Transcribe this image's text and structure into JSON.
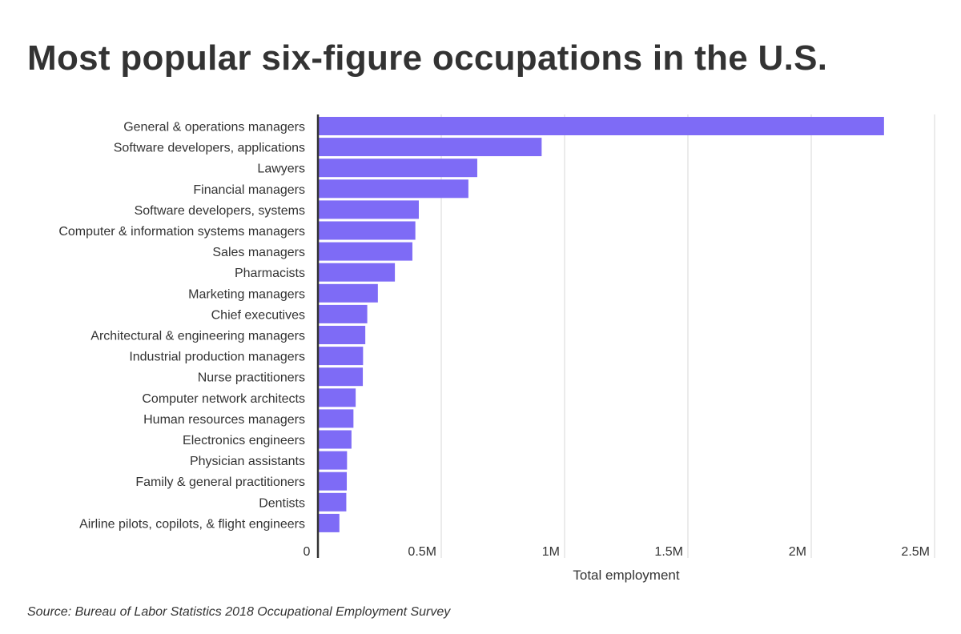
{
  "title": "Most popular six-figure occupations in the U.S.",
  "source": "Source: Bureau of Labor Statistics 2018 Occupational Employment Survey",
  "colors": {
    "bar": "#7E6BF6",
    "grid": "#d7d7d7",
    "axis": "#333333",
    "text": "#333333"
  },
  "chart_data": {
    "type": "bar",
    "orientation": "horizontal",
    "title": "Most popular six-figure occupations in the U.S.",
    "xlabel": "Total employment",
    "ylabel": "",
    "xlim": [
      0,
      2500000
    ],
    "grid": true,
    "x_ticks": [
      {
        "value": 0,
        "label": "0"
      },
      {
        "value": 500000,
        "label": "0.5M"
      },
      {
        "value": 1000000,
        "label": "1M"
      },
      {
        "value": 1500000,
        "label": "1.5M"
      },
      {
        "value": 2000000,
        "label": "2M"
      },
      {
        "value": 2500000,
        "label": "2.5M"
      }
    ],
    "categories": [
      "General & operations managers",
      "Software developers, applications",
      "Lawyers",
      "Financial managers",
      "Software developers, systems",
      "Computer & information systems managers",
      "Sales managers",
      "Pharmacists",
      "Marketing managers",
      "Chief executives",
      "Architectural & engineering managers",
      "Industrial production managers",
      "Nurse practitioners",
      "Computer network architects",
      "Human resources managers",
      "Electronics engineers",
      "Physician assistants",
      "Family & general practitioners",
      "Dentists",
      "Airline pilots, copilots, & flight engineers"
    ],
    "values": [
      2295000,
      907000,
      646000,
      610000,
      409000,
      395000,
      383000,
      312000,
      243000,
      200000,
      192000,
      183000,
      182000,
      153000,
      144000,
      136000,
      118000,
      117000,
      115000,
      87000
    ],
    "source": "Source: Bureau of Labor Statistics 2018 Occupational Employment Survey"
  }
}
